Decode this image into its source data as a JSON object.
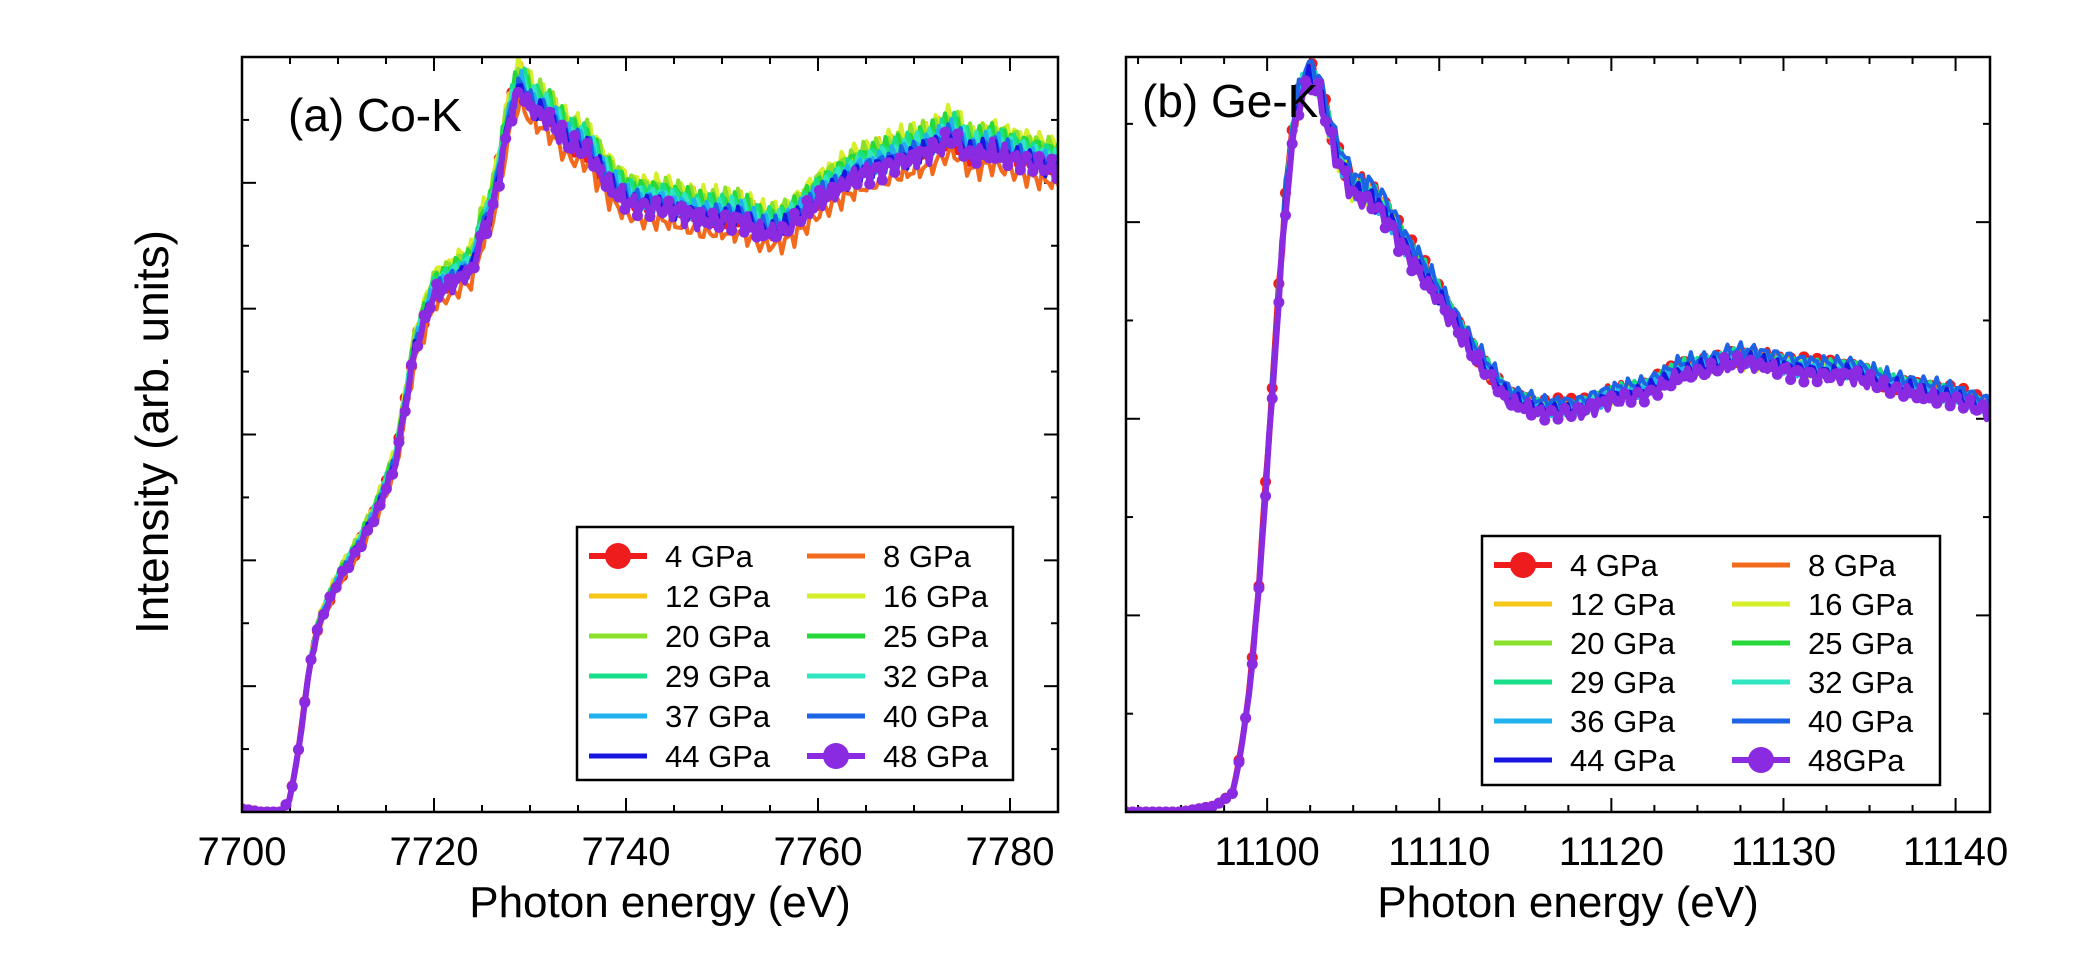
{
  "figure": {
    "ylabel": "Intensity (arb. units)"
  },
  "chart_data": [
    {
      "type": "line",
      "title": "(a) Co-K",
      "xlabel": "Photon energy (eV)",
      "ylabel": "Intensity (arb. units)",
      "xlim": [
        7700,
        7785
      ],
      "ylim": [
        0,
        1.2
      ],
      "xticks": [
        7700,
        7720,
        7740,
        7760,
        7780
      ],
      "xtick_labels": [
        "7700",
        "7720",
        "7740",
        "7760",
        "7780"
      ],
      "legend_position": "bottom-right",
      "legend_columns": 2,
      "base_curve": {
        "x": [
          7700,
          7702,
          7704,
          7705,
          7706,
          7707,
          7708,
          7710,
          7712,
          7714,
          7716,
          7718,
          7720,
          7722,
          7724,
          7725,
          7726,
          7727,
          7728,
          7729,
          7730,
          7732,
          7734,
          7736,
          7738,
          7740,
          7742,
          7744,
          7746,
          7748,
          7750,
          7752,
          7754,
          7756,
          7758,
          7760,
          7762,
          7764,
          7766,
          7768,
          7770,
          7772,
          7774,
          7776,
          7778,
          7780,
          7782,
          7785
        ],
        "y": [
          0.005,
          0.0,
          0.0,
          0.02,
          0.11,
          0.23,
          0.3,
          0.37,
          0.42,
          0.48,
          0.56,
          0.74,
          0.83,
          0.85,
          0.87,
          0.93,
          0.96,
          1.04,
          1.12,
          1.16,
          1.13,
          1.11,
          1.07,
          1.06,
          1.01,
          0.98,
          0.97,
          0.97,
          0.96,
          0.95,
          0.95,
          0.95,
          0.93,
          0.93,
          0.95,
          0.98,
          1.0,
          1.02,
          1.03,
          1.04,
          1.05,
          1.06,
          1.08,
          1.05,
          1.06,
          1.05,
          1.04,
          1.03
        ]
      },
      "series": [
        {
          "name": "4 GPa",
          "color": "#ee1c1c",
          "marker": true,
          "offset": 0.0
        },
        {
          "name": "8 GPa",
          "color": "#f26b1d",
          "marker": false,
          "offset": -0.03
        },
        {
          "name": "12 GPa",
          "color": "#f5c518",
          "marker": false,
          "offset": 0.02
        },
        {
          "name": "16 GPa",
          "color": "#d7ee2a",
          "marker": false,
          "offset": 0.03
        },
        {
          "name": "20 GPa",
          "color": "#8be02c",
          "marker": false,
          "offset": 0.025
        },
        {
          "name": "25 GPa",
          "color": "#27d83a",
          "marker": false,
          "offset": 0.02
        },
        {
          "name": "29 GPa",
          "color": "#18e08a",
          "marker": false,
          "offset": 0.015
        },
        {
          "name": "32 GPa",
          "color": "#2fe6c0",
          "marker": false,
          "offset": 0.01
        },
        {
          "name": "37 GPa",
          "color": "#1fb2ee",
          "marker": false,
          "offset": 0.005
        },
        {
          "name": "40 GPa",
          "color": "#1c63e6",
          "marker": false,
          "offset": 0.0
        },
        {
          "name": "44 GPa",
          "color": "#1616e0",
          "marker": false,
          "offset": -0.005
        },
        {
          "name": "48 GPa",
          "color": "#8a2be2",
          "marker": true,
          "offset": -0.01
        }
      ]
    },
    {
      "type": "line",
      "title": "(b) Ge-K",
      "xlabel": "Photon energy (eV)",
      "ylabel": "",
      "xlim": [
        11091.8,
        11142
      ],
      "ylim": [
        0,
        1.2
      ],
      "xticks": [
        11100,
        11110,
        11120,
        11130,
        11140
      ],
      "xtick_labels": [
        "11100",
        "11110",
        "11120",
        "11130",
        "11140"
      ],
      "legend_position": "bottom-right",
      "legend_columns": 2,
      "base_curve": {
        "x": [
          11092,
          11095,
          11097,
          11098,
          11098.5,
          11099,
          11099.5,
          11100,
          11100.5,
          11101,
          11101.5,
          11102,
          11102.5,
          11103,
          11104,
          11105,
          11106,
          11107,
          11108,
          11110,
          11112,
          11114,
          11116,
          11118,
          11120,
          11122,
          11124,
          11126,
          11127,
          11128,
          11130,
          11132,
          11134,
          11136,
          11138,
          11140,
          11142
        ],
        "y": [
          0.0,
          0.0,
          0.01,
          0.03,
          0.1,
          0.2,
          0.35,
          0.55,
          0.75,
          0.95,
          1.08,
          1.15,
          1.17,
          1.15,
          1.05,
          0.99,
          0.98,
          0.95,
          0.9,
          0.82,
          0.73,
          0.66,
          0.64,
          0.64,
          0.66,
          0.67,
          0.7,
          0.71,
          0.72,
          0.72,
          0.71,
          0.7,
          0.7,
          0.68,
          0.67,
          0.66,
          0.64
        ]
      },
      "series": [
        {
          "name": "4 GPa",
          "color": "#ee1c1c",
          "marker": true,
          "offset": 0.01
        },
        {
          "name": "8 GPa",
          "color": "#f26b1d",
          "marker": false,
          "offset": 0.005
        },
        {
          "name": "12 GPa",
          "color": "#f5c518",
          "marker": false,
          "offset": 0.0
        },
        {
          "name": "16 GPa",
          "color": "#d7ee2a",
          "marker": false,
          "offset": -0.005
        },
        {
          "name": "20 GPa",
          "color": "#8be02c",
          "marker": false,
          "offset": 0.0
        },
        {
          "name": "25 GPa",
          "color": "#27d83a",
          "marker": false,
          "offset": 0.005
        },
        {
          "name": "29 GPa",
          "color": "#18e08a",
          "marker": false,
          "offset": 0.01
        },
        {
          "name": "32 GPa",
          "color": "#2fe6c0",
          "marker": false,
          "offset": 0.005
        },
        {
          "name": "36 GPa",
          "color": "#1fb2ee",
          "marker": false,
          "offset": 0.0
        },
        {
          "name": "40 GPa",
          "color": "#1c63e6",
          "marker": false,
          "offset": 0.02
        },
        {
          "name": "44 GPa",
          "color": "#1616e0",
          "marker": false,
          "offset": 0.0
        },
        {
          "name": "48GPa",
          "color": "#8a2be2",
          "marker": true,
          "offset": -0.01
        }
      ]
    }
  ]
}
